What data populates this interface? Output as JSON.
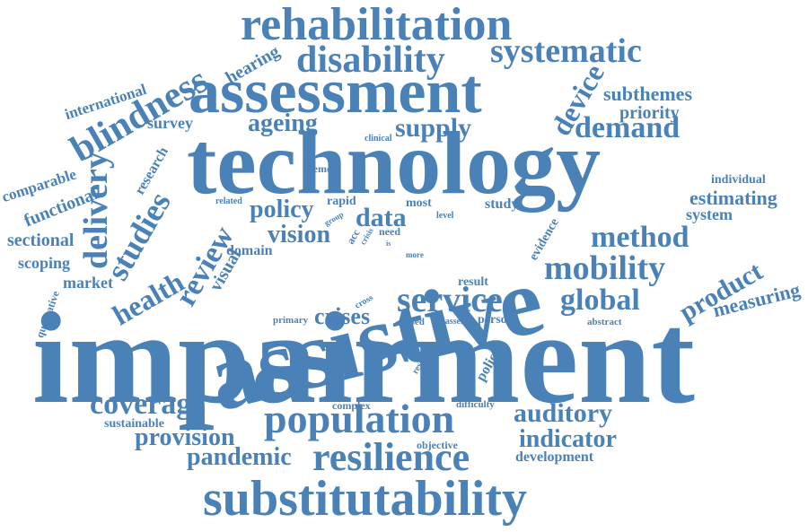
{
  "color": "#4a82b8",
  "words": [
    "impairment",
    "technology",
    "assistive",
    "assessment",
    "rehabilitation",
    "substitutability",
    "population",
    "disability",
    "resilience",
    "systematic",
    "mobility",
    "service",
    "demand",
    "method",
    "coverage",
    "auditory",
    "indicator",
    "blindness",
    "delivery",
    "studies",
    "review",
    "health",
    "device",
    "product",
    "global",
    "policy",
    "supply",
    "vision",
    "data",
    "ageing",
    "crises",
    "provision",
    "pandemic",
    "measuring",
    "subthemes",
    "priority",
    "estimating",
    "individual",
    "system",
    "hearing",
    "international",
    "survey",
    "comparable",
    "functional",
    "sectional",
    "scoping",
    "market",
    "qualitative",
    "research",
    "visual",
    "domain",
    "theme",
    "related",
    "clinical",
    "rapid",
    "group",
    "most",
    "study",
    "level",
    "evidence",
    "need",
    "acc",
    "crisis",
    "more",
    "cross",
    "result",
    "primary",
    "based",
    "glasses",
    "person",
    "abstract",
    "resilient",
    "policies",
    "complex",
    "difficulty",
    "sustainable",
    "objective",
    "development",
    "is"
  ]
}
